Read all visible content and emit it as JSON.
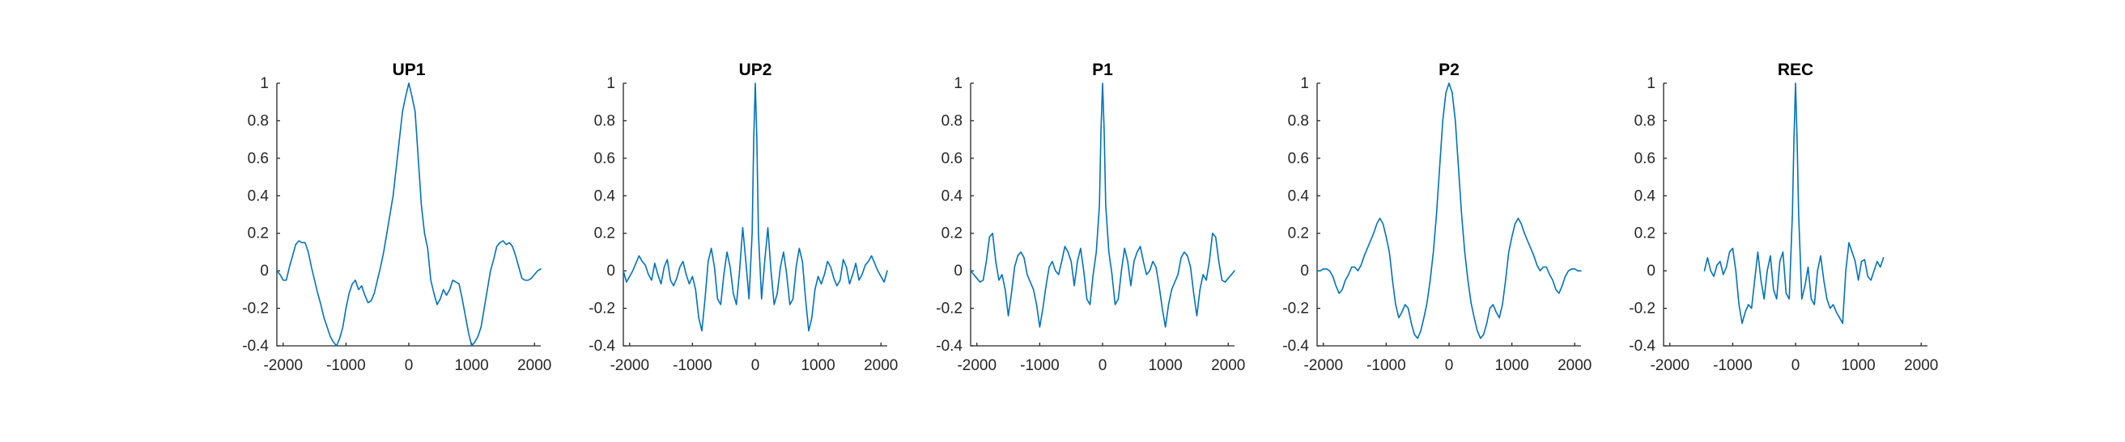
{
  "figure": {
    "background": "#ffffff"
  },
  "chart_data": [
    {
      "type": "line",
      "title": "UP1",
      "xlabel": "",
      "ylabel": "",
      "xlim": [
        -2100,
        2100
      ],
      "ylim": [
        -0.4,
        1
      ],
      "xticks": [
        -2000,
        -1000,
        0,
        1000,
        2000
      ],
      "yticks": [
        -0.4,
        -0.2,
        0,
        0.2,
        0.4,
        0.6,
        0.8,
        1
      ],
      "grid": false,
      "series": [
        {
          "color": "#0072BD",
          "x": [
            -2100,
            -2050,
            -2000,
            -1950,
            -1900,
            -1850,
            -1800,
            -1750,
            -1700,
            -1650,
            -1600,
            -1550,
            -1500,
            -1450,
            -1400,
            -1350,
            -1300,
            -1250,
            -1200,
            -1150,
            -1100,
            -1050,
            -1000,
            -950,
            -900,
            -850,
            -800,
            -750,
            -700,
            -650,
            -600,
            -550,
            -500,
            -450,
            -400,
            -350,
            -300,
            -250,
            -200,
            -150,
            -100,
            -50,
            0,
            50,
            100,
            150,
            200,
            250,
            300,
            350,
            400,
            450,
            500,
            550,
            600,
            650,
            700,
            750,
            800,
            850,
            900,
            950,
            1000,
            1050,
            1100,
            1150,
            1200,
            1250,
            1300,
            1350,
            1400,
            1450,
            1500,
            1550,
            1600,
            1650,
            1700,
            1750,
            1800,
            1850,
            1900,
            1950,
            2000,
            2050,
            2100
          ],
          "y": [
            0,
            -0.02,
            -0.05,
            -0.05,
            0.02,
            0.08,
            0.14,
            0.16,
            0.15,
            0.15,
            0.1,
            0.02,
            -0.05,
            -0.12,
            -0.18,
            -0.25,
            -0.3,
            -0.35,
            -0.38,
            -0.4,
            -0.36,
            -0.3,
            -0.2,
            -0.12,
            -0.07,
            -0.05,
            -0.1,
            -0.08,
            -0.13,
            -0.17,
            -0.16,
            -0.12,
            -0.05,
            0.02,
            0.1,
            0.2,
            0.3,
            0.4,
            0.55,
            0.7,
            0.85,
            0.93,
            1,
            0.93,
            0.85,
            0.6,
            0.35,
            0.2,
            0.12,
            -0.05,
            -0.12,
            -0.18,
            -0.15,
            -0.1,
            -0.13,
            -0.1,
            -0.05,
            -0.06,
            -0.07,
            -0.15,
            -0.24,
            -0.33,
            -0.4,
            -0.38,
            -0.35,
            -0.3,
            -0.2,
            -0.1,
            0,
            0.06,
            0.13,
            0.15,
            0.16,
            0.14,
            0.15,
            0.13,
            0.08,
            0.02,
            -0.04,
            -0.05,
            -0.05,
            -0.04,
            -0.02,
            0,
            0.01
          ]
        }
      ]
    },
    {
      "type": "line",
      "title": "UP2",
      "xlabel": "",
      "ylabel": "",
      "xlim": [
        -2100,
        2100
      ],
      "ylim": [
        -0.4,
        1
      ],
      "xticks": [
        -2000,
        -1000,
        0,
        1000,
        2000
      ],
      "yticks": [
        -0.4,
        -0.2,
        0,
        0.2,
        0.4,
        0.6,
        0.8,
        1
      ],
      "grid": false,
      "series": [
        {
          "color": "#0072BD",
          "x": [
            -2100,
            -2050,
            -2000,
            -1950,
            -1900,
            -1850,
            -1800,
            -1750,
            -1700,
            -1650,
            -1600,
            -1550,
            -1500,
            -1450,
            -1400,
            -1350,
            -1300,
            -1250,
            -1200,
            -1150,
            -1100,
            -1050,
            -1000,
            -950,
            -900,
            -850,
            -800,
            -750,
            -700,
            -650,
            -600,
            -550,
            -500,
            -450,
            -400,
            -350,
            -300,
            -250,
            -200,
            -150,
            -100,
            -50,
            -25,
            0,
            25,
            50,
            100,
            150,
            200,
            250,
            300,
            350,
            400,
            450,
            500,
            550,
            600,
            650,
            700,
            750,
            800,
            850,
            900,
            950,
            1000,
            1050,
            1100,
            1150,
            1200,
            1250,
            1300,
            1350,
            1400,
            1450,
            1500,
            1550,
            1600,
            1650,
            1700,
            1750,
            1800,
            1850,
            1900,
            1950,
            2000,
            2050,
            2100
          ],
          "y": [
            0,
            -0.06,
            -0.03,
            0,
            0.04,
            0.08,
            0.05,
            0.03,
            -0.02,
            -0.05,
            0.04,
            -0.02,
            -0.07,
            0.02,
            0.06,
            -0.05,
            -0.08,
            -0.04,
            0.02,
            0.05,
            -0.02,
            -0.07,
            -0.03,
            -0.1,
            -0.25,
            -0.32,
            -0.15,
            0.05,
            0.12,
            0.02,
            -0.15,
            -0.18,
            -0.02,
            0.1,
            0.02,
            -0.12,
            -0.18,
            0,
            0.23,
            0.05,
            -0.15,
            0.2,
            0.7,
            1,
            0.7,
            0.2,
            -0.15,
            0.05,
            0.23,
            0,
            -0.18,
            -0.12,
            0.02,
            0.1,
            -0.02,
            -0.18,
            -0.15,
            0.02,
            0.12,
            0.05,
            -0.15,
            -0.32,
            -0.25,
            -0.1,
            -0.03,
            -0.07,
            -0.02,
            0.05,
            0.02,
            -0.04,
            -0.08,
            -0.05,
            0.06,
            0.02,
            -0.07,
            -0.02,
            0.04,
            -0.05,
            -0.02,
            0.03,
            0.05,
            0.08,
            0.04,
            0,
            -0.03,
            -0.06,
            0
          ]
        }
      ]
    },
    {
      "type": "line",
      "title": "P1",
      "xlabel": "",
      "ylabel": "",
      "xlim": [
        -2100,
        2100
      ],
      "ylim": [
        -0.4,
        1
      ],
      "xticks": [
        -2000,
        -1000,
        0,
        1000,
        2000
      ],
      "yticks": [
        -0.4,
        -0.2,
        0,
        0.2,
        0.4,
        0.6,
        0.8,
        1
      ],
      "grid": false,
      "series": [
        {
          "color": "#0072BD",
          "x": [
            -2100,
            -2050,
            -2000,
            -1950,
            -1900,
            -1850,
            -1800,
            -1750,
            -1700,
            -1650,
            -1600,
            -1550,
            -1500,
            -1450,
            -1400,
            -1350,
            -1300,
            -1250,
            -1200,
            -1150,
            -1100,
            -1050,
            -1000,
            -950,
            -900,
            -850,
            -800,
            -750,
            -700,
            -650,
            -600,
            -550,
            -500,
            -450,
            -400,
            -350,
            -300,
            -250,
            -200,
            -150,
            -100,
            -50,
            -25,
            0,
            25,
            50,
            100,
            150,
            200,
            250,
            300,
            350,
            400,
            450,
            500,
            550,
            600,
            650,
            700,
            750,
            800,
            850,
            900,
            950,
            1000,
            1050,
            1100,
            1150,
            1200,
            1250,
            1300,
            1350,
            1400,
            1450,
            1500,
            1550,
            1600,
            1650,
            1700,
            1750,
            1800,
            1850,
            1900,
            1950,
            2000,
            2050,
            2100
          ],
          "y": [
            0,
            -0.02,
            -0.04,
            -0.06,
            -0.05,
            0.05,
            0.18,
            0.2,
            0.05,
            -0.05,
            -0.02,
            -0.1,
            -0.24,
            -0.12,
            0.02,
            0.08,
            0.1,
            0.07,
            -0.02,
            -0.06,
            -0.1,
            -0.18,
            -0.3,
            -0.2,
            -0.08,
            0.02,
            0.05,
            0.0,
            -0.02,
            0.05,
            0.13,
            0.1,
            0.05,
            -0.08,
            0.05,
            0.12,
            0.0,
            -0.15,
            -0.18,
            -0.02,
            0.1,
            0.35,
            0.75,
            1,
            0.75,
            0.35,
            0.1,
            -0.02,
            -0.18,
            -0.15,
            0.0,
            0.12,
            0.05,
            -0.08,
            0.05,
            0.1,
            0.13,
            0.05,
            -0.02,
            0.0,
            0.05,
            0.02,
            -0.08,
            -0.2,
            -0.3,
            -0.18,
            -0.1,
            -0.06,
            -0.02,
            0.07,
            0.1,
            0.08,
            0.02,
            -0.12,
            -0.24,
            -0.1,
            -0.02,
            -0.05,
            0.05,
            0.2,
            0.18,
            0.05,
            -0.05,
            -0.06,
            -0.04,
            -0.02,
            0
          ]
        }
      ]
    },
    {
      "type": "line",
      "title": "P2",
      "xlabel": "",
      "ylabel": "",
      "xlim": [
        -2100,
        2100
      ],
      "ylim": [
        -0.4,
        1
      ],
      "xticks": [
        -2000,
        -1000,
        0,
        1000,
        2000
      ],
      "yticks": [
        -0.4,
        -0.2,
        0,
        0.2,
        0.4,
        0.6,
        0.8,
        1
      ],
      "grid": false,
      "series": [
        {
          "color": "#0072BD",
          "x": [
            -2100,
            -2050,
            -2000,
            -1950,
            -1900,
            -1850,
            -1800,
            -1750,
            -1700,
            -1650,
            -1600,
            -1550,
            -1500,
            -1450,
            -1400,
            -1350,
            -1300,
            -1250,
            -1200,
            -1150,
            -1100,
            -1050,
            -1000,
            -950,
            -900,
            -850,
            -800,
            -750,
            -700,
            -650,
            -600,
            -550,
            -500,
            -450,
            -400,
            -350,
            -300,
            -250,
            -200,
            -150,
            -100,
            -50,
            0,
            50,
            100,
            150,
            200,
            250,
            300,
            350,
            400,
            450,
            500,
            550,
            600,
            650,
            700,
            750,
            800,
            850,
            900,
            950,
            1000,
            1050,
            1100,
            1150,
            1200,
            1250,
            1300,
            1350,
            1400,
            1450,
            1500,
            1550,
            1600,
            1650,
            1700,
            1750,
            1800,
            1850,
            1900,
            1950,
            2000,
            2050,
            2100
          ],
          "y": [
            0,
            0.0,
            0.01,
            0.01,
            0.0,
            -0.03,
            -0.08,
            -0.12,
            -0.1,
            -0.05,
            -0.02,
            0.02,
            0.02,
            0.0,
            0.03,
            0.08,
            0.12,
            0.16,
            0.2,
            0.25,
            0.28,
            0.25,
            0.18,
            0.1,
            -0.05,
            -0.18,
            -0.25,
            -0.22,
            -0.18,
            -0.2,
            -0.28,
            -0.34,
            -0.36,
            -0.32,
            -0.25,
            -0.17,
            -0.05,
            0.1,
            0.3,
            0.55,
            0.8,
            0.95,
            1,
            0.95,
            0.8,
            0.55,
            0.3,
            0.1,
            -0.05,
            -0.17,
            -0.25,
            -0.32,
            -0.36,
            -0.34,
            -0.28,
            -0.2,
            -0.18,
            -0.22,
            -0.25,
            -0.18,
            -0.05,
            0.1,
            0.18,
            0.25,
            0.28,
            0.25,
            0.2,
            0.16,
            0.12,
            0.08,
            0.03,
            0.0,
            0.02,
            0.02,
            -0.02,
            -0.05,
            -0.1,
            -0.12,
            -0.08,
            -0.03,
            0.0,
            0.01,
            0.01,
            0.0,
            0
          ]
        }
      ]
    },
    {
      "type": "line",
      "title": "REC",
      "xlabel": "",
      "ylabel": "",
      "xlim": [
        -2100,
        2100
      ],
      "ylim": [
        -0.4,
        1
      ],
      "xticks": [
        -2000,
        -1000,
        0,
        1000,
        2000
      ],
      "yticks": [
        -0.4,
        -0.2,
        0,
        0.2,
        0.4,
        0.6,
        0.8,
        1
      ],
      "grid": false,
      "series": [
        {
          "color": "#0072BD",
          "x": [
            -1450,
            -1400,
            -1350,
            -1300,
            -1250,
            -1200,
            -1150,
            -1100,
            -1050,
            -1000,
            -950,
            -900,
            -850,
            -800,
            -750,
            -700,
            -650,
            -600,
            -550,
            -500,
            -450,
            -400,
            -350,
            -300,
            -250,
            -200,
            -150,
            -100,
            -50,
            -25,
            0,
            25,
            50,
            100,
            150,
            200,
            250,
            300,
            350,
            400,
            450,
            500,
            550,
            600,
            650,
            700,
            750,
            800,
            850,
            900,
            950,
            1000,
            1050,
            1100,
            1150,
            1200,
            1250,
            1300,
            1350,
            1400
          ],
          "y": [
            0,
            0.07,
            0.0,
            -0.03,
            0.03,
            0.05,
            -0.02,
            0.02,
            0.1,
            0.12,
            0.0,
            -0.18,
            -0.28,
            -0.22,
            -0.18,
            -0.2,
            -0.05,
            0.1,
            -0.05,
            -0.15,
            0.0,
            0.08,
            -0.1,
            -0.15,
            0.05,
            0.1,
            -0.12,
            -0.15,
            0.3,
            0.7,
            1,
            0.7,
            0.3,
            -0.15,
            -0.08,
            0.02,
            -0.15,
            -0.18,
            0.0,
            0.08,
            -0.05,
            -0.15,
            -0.2,
            -0.18,
            -0.22,
            -0.25,
            -0.28,
            0.0,
            0.15,
            0.1,
            0.05,
            -0.05,
            0.05,
            0.06,
            -0.03,
            -0.05,
            0.0,
            0.05,
            0.02,
            0.07
          ]
        }
      ]
    }
  ]
}
